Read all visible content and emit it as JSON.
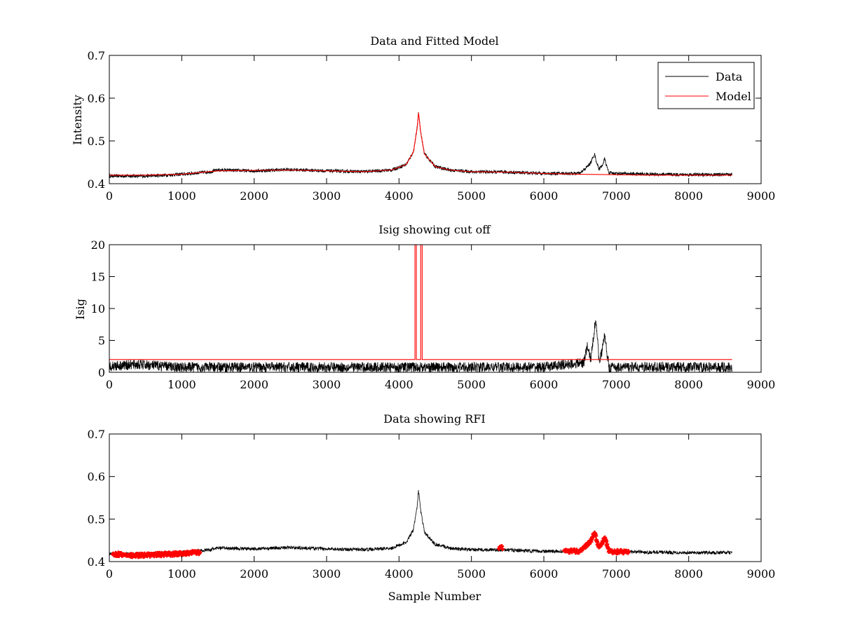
{
  "colors": {
    "data": "#000000",
    "model": "#ff0000",
    "background": "#ffffff"
  },
  "chart_data": [
    {
      "type": "line",
      "title": "Data and Fitted Model",
      "xlabel": "",
      "ylabel": "Intensity",
      "xlim": [
        0,
        9000
      ],
      "ylim": [
        0.4,
        0.7
      ],
      "xticks": [
        0,
        1000,
        2000,
        3000,
        4000,
        5000,
        6000,
        7000,
        8000,
        9000
      ],
      "yticks": [
        0.4,
        0.5,
        0.6,
        0.7
      ],
      "legend": {
        "placement": "top-right",
        "entries": [
          "Data",
          "Model"
        ]
      },
      "series": [
        {
          "name": "Data",
          "color": "#000000",
          "x": [
            0,
            500,
            1000,
            1400,
            1500,
            2000,
            2500,
            3000,
            3500,
            3900,
            4100,
            4200,
            4250,
            4270,
            4300,
            4350,
            4500,
            4700,
            5000,
            5500,
            6000,
            6500,
            6600,
            6650,
            6700,
            6720,
            6760,
            6800,
            6840,
            6860,
            6900,
            7000,
            7500,
            8000,
            8600
          ],
          "y": [
            0.418,
            0.418,
            0.422,
            0.428,
            0.432,
            0.43,
            0.433,
            0.43,
            0.428,
            0.432,
            0.445,
            0.475,
            0.53,
            0.566,
            0.52,
            0.47,
            0.44,
            0.432,
            0.428,
            0.427,
            0.424,
            0.424,
            0.44,
            0.45,
            0.47,
            0.455,
            0.435,
            0.44,
            0.458,
            0.445,
            0.425,
            0.424,
            0.422,
            0.421,
            0.421
          ],
          "noise": 0.004
        },
        {
          "name": "Model",
          "color": "#ff0000",
          "x": [
            0,
            500,
            1000,
            1500,
            2000,
            2500,
            3000,
            3500,
            3900,
            4100,
            4200,
            4250,
            4270,
            4300,
            4350,
            4500,
            4700,
            5000,
            5500,
            6000,
            6500,
            7000,
            7500,
            8000,
            8600
          ],
          "y": [
            0.42,
            0.42,
            0.422,
            0.43,
            0.431,
            0.432,
            0.43,
            0.428,
            0.432,
            0.445,
            0.475,
            0.53,
            0.566,
            0.52,
            0.47,
            0.44,
            0.432,
            0.428,
            0.427,
            0.424,
            0.422,
            0.421,
            0.42,
            0.42,
            0.42
          ]
        }
      ]
    },
    {
      "type": "line",
      "title": "Isig showing cut off",
      "xlabel": "",
      "ylabel": "Isig",
      "xlim": [
        0,
        9000
      ],
      "ylim": [
        0,
        20
      ],
      "xticks": [
        0,
        1000,
        2000,
        3000,
        4000,
        5000,
        6000,
        7000,
        8000,
        9000
      ],
      "yticks": [
        0,
        5,
        10,
        15,
        20
      ],
      "series": [
        {
          "color": "#000000",
          "x": [
            0,
            400,
            1000,
            4000,
            6000,
            6550,
            6600,
            6650,
            6700,
            6720,
            6760,
            6800,
            6840,
            6860,
            6900,
            7000,
            8600
          ],
          "y": [
            1.0,
            1.2,
            0.8,
            0.8,
            0.8,
            1.5,
            4.0,
            2.0,
            7.0,
            8.5,
            2.0,
            3.0,
            6.0,
            4.0,
            0.8,
            0.8,
            0.8
          ],
          "noise": 0.8
        },
        {
          "color": "#ff0000",
          "x": [
            0,
            4220,
            4220,
            4240,
            4240,
            4300,
            4300,
            4320,
            4320,
            8600
          ],
          "y": [
            2,
            2,
            20,
            20,
            2,
            2,
            20,
            20,
            2,
            2
          ]
        }
      ]
    },
    {
      "type": "scatter",
      "title": "Data showing RFI",
      "xlabel": "Sample Number",
      "ylabel": "",
      "xlim": [
        0,
        9000
      ],
      "ylim": [
        0.4,
        0.7
      ],
      "xticks": [
        0,
        1000,
        2000,
        3000,
        4000,
        5000,
        6000,
        7000,
        8000,
        9000
      ],
      "yticks": [
        0.4,
        0.5,
        0.6,
        0.7
      ],
      "series": [
        {
          "color": "#000000",
          "x": [
            0,
            500,
            1000,
            1400,
            1500,
            2000,
            2500,
            3000,
            3500,
            3900,
            4100,
            4200,
            4250,
            4270,
            4300,
            4350,
            4500,
            4700,
            5000,
            5500,
            6000,
            6500,
            6600,
            6650,
            6700,
            6720,
            6760,
            6800,
            6840,
            6860,
            6900,
            7000,
            7500,
            8000,
            8600
          ],
          "y": [
            0.418,
            0.418,
            0.422,
            0.428,
            0.432,
            0.43,
            0.433,
            0.43,
            0.428,
            0.432,
            0.445,
            0.475,
            0.53,
            0.566,
            0.52,
            0.47,
            0.44,
            0.432,
            0.428,
            0.427,
            0.424,
            0.424,
            0.44,
            0.45,
            0.47,
            0.455,
            0.435,
            0.44,
            0.458,
            0.445,
            0.425,
            0.424,
            0.422,
            0.421,
            0.421
          ],
          "noise": 0.004
        },
        {
          "color": "#ff0000",
          "x_ranges": [
            [
              50,
              1250
            ],
            [
              5380,
              5430
            ],
            [
              6280,
              7170
            ]
          ],
          "x": [
            50,
            300,
            600,
            900,
            1250,
            5380,
            5400,
            5430,
            6280,
            6500,
            6600,
            6650,
            6700,
            6720,
            6760,
            6800,
            6840,
            6860,
            6900,
            7000,
            7170
          ],
          "y": [
            0.418,
            0.414,
            0.416,
            0.418,
            0.422,
            0.43,
            0.437,
            0.43,
            0.424,
            0.425,
            0.44,
            0.45,
            0.47,
            0.455,
            0.435,
            0.44,
            0.458,
            0.445,
            0.425,
            0.423,
            0.423
          ]
        }
      ]
    }
  ]
}
